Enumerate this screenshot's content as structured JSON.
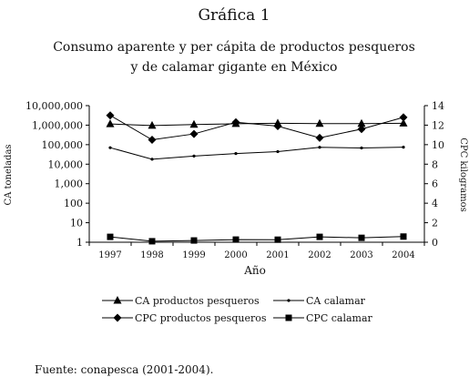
{
  "figure": {
    "label": "Gráfica 1",
    "title_line1": "Consumo aparente y per cápita de productos pesqueros",
    "title_line2": "y de calamar gigante en México",
    "source": "Fuente: conapesca (2001-2004)."
  },
  "chart_data": {
    "type": "line",
    "categories": [
      "1997",
      "1998",
      "1999",
      "2000",
      "2001",
      "2002",
      "2003",
      "2004"
    ],
    "xlabel": "Año",
    "y_left": {
      "label": "CA toneladas",
      "scale": "log",
      "ticks": [
        1,
        10,
        100,
        1000,
        10000,
        100000,
        1000000,
        10000000
      ],
      "tick_labels": [
        "1",
        "10",
        "100",
        "1,000",
        "10,000",
        "100,000",
        "1,000,000",
        "10,000,000"
      ],
      "ylim": [
        1,
        10000000
      ]
    },
    "y_right": {
      "label": "CPC kilogramos",
      "scale": "linear",
      "ticks": [
        0,
        2,
        4,
        6,
        8,
        10,
        12,
        14
      ],
      "tick_labels": [
        "0",
        "2",
        "4",
        "6",
        "8",
        "10",
        "12",
        "14"
      ],
      "ylim": [
        0,
        14
      ]
    },
    "series": [
      {
        "name": "CA productos pesqueros",
        "axis": "left",
        "marker": "triangle",
        "values": [
          1150000,
          950000,
          1080000,
          1180000,
          1250000,
          1200000,
          1200000,
          1250000
        ]
      },
      {
        "name": "CA calamar",
        "axis": "left",
        "marker": "dot",
        "values": [
          70000,
          18000,
          26000,
          35000,
          44000,
          73000,
          68000,
          74000
        ]
      },
      {
        "name": "CPC productos pesqueros",
        "axis": "right",
        "marker": "diamond",
        "values": [
          13,
          10.5,
          11.1,
          12.3,
          11.9,
          10.7,
          11.6,
          12.8
        ]
      },
      {
        "name": "CPC calamar",
        "axis": "right",
        "marker": "square",
        "values": [
          0.55,
          0.1,
          0.18,
          0.27,
          0.26,
          0.55,
          0.45,
          0.58
        ]
      }
    ],
    "legend_position": "bottom",
    "grid": false
  }
}
